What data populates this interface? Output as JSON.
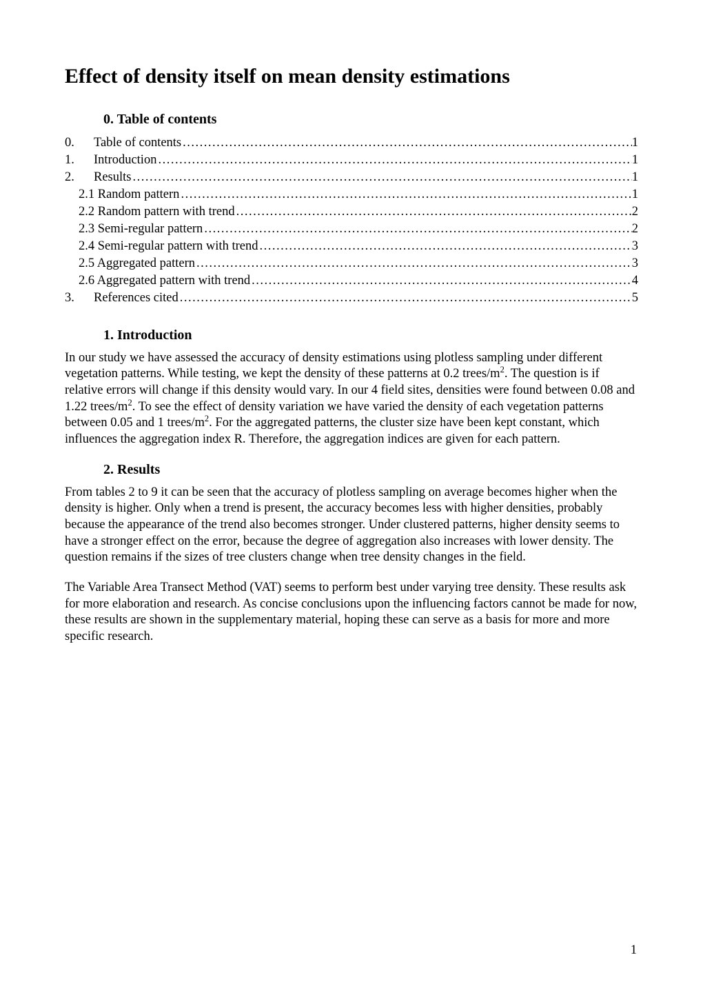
{
  "title": "Effect of density itself on mean density estimations",
  "toc_heading": "0.  Table of contents",
  "toc": [
    {
      "num": "0.",
      "label": "Table of contents",
      "page": "1",
      "indent": "top"
    },
    {
      "num": "1.",
      "label": "Introduction",
      "page": "1",
      "indent": "top"
    },
    {
      "num": "2.",
      "label": "Results",
      "page": "1",
      "indent": "top"
    },
    {
      "num": "",
      "label": "2.1 Random pattern",
      "page": "1",
      "indent": "sub"
    },
    {
      "num": "",
      "label": "2.2 Random pattern with trend",
      "page": "2",
      "indent": "sub"
    },
    {
      "num": "",
      "label": "2.3 Semi-regular pattern",
      "page": "2",
      "indent": "sub"
    },
    {
      "num": "",
      "label": "2.4 Semi-regular pattern with trend",
      "page": "3",
      "indent": "sub"
    },
    {
      "num": "",
      "label": "2.5 Aggregated pattern",
      "page": "3",
      "indent": "sub"
    },
    {
      "num": "",
      "label": "2.6 Aggregated pattern with trend",
      "page": "4",
      "indent": "sub"
    },
    {
      "num": "3.",
      "label": "References cited",
      "page": "5",
      "indent": "top"
    }
  ],
  "intro_heading": "1.  Introduction",
  "intro": {
    "p1a": "In our study we have assessed the accuracy of density estimations using plotless sampling und",
    "p1b": "er different vegetation patterns. While testing, we kept the density of these patterns at 0.2 trees",
    "p1c": "/m",
    "sup1": "2",
    "p1d": ". The question is if relative errors will change if this density would vary. In our 4 field sites,",
    "p1e": " densities were found between 0.08 and 1.22 trees/m",
    "sup2": "2",
    "p1f": ". To see the effect of density variation we ",
    "p1g": "have varied the density of each vegetation patterns between 0.05 and 1 trees/m",
    "sup3": "2",
    "p1h": ". For the aggre",
    "p1i": "gated patterns, the cluster size have been kept constant, which influences the aggregation inde",
    "p1j": "x R. Therefore, the aggregation indices are given for each pattern."
  },
  "results_heading": "2.  Results",
  "results_p1": "From tables 2 to 9 it can be seen that the accuracy of plotless sampling on average becomes higher when the density is higher. Only when a trend is present, the accuracy becomes less with higher densities, probably because the appearance of the trend also becomes stronger. Under clustered patterns, higher density seems to have a stronger effect on the error, because the degree of aggregation also increases with lower density. The question remains if the sizes of tree clusters change when tree density changes in the field.",
  "results_p2": "The Variable Area Transect Method (VAT) seems to perform best under varying tree density. These results ask for more elaboration and research. As concise conclusions upon the influencing factors cannot be made for now, these results are shown in the supplementary material, hoping these can serve as a basis for more and more specific research.",
  "page_number": "1",
  "colors": {
    "text": "#000000",
    "background": "#ffffff"
  },
  "typography": {
    "title_pt": 22,
    "heading_pt": 15,
    "body_pt": 14,
    "family": "Times New Roman"
  }
}
